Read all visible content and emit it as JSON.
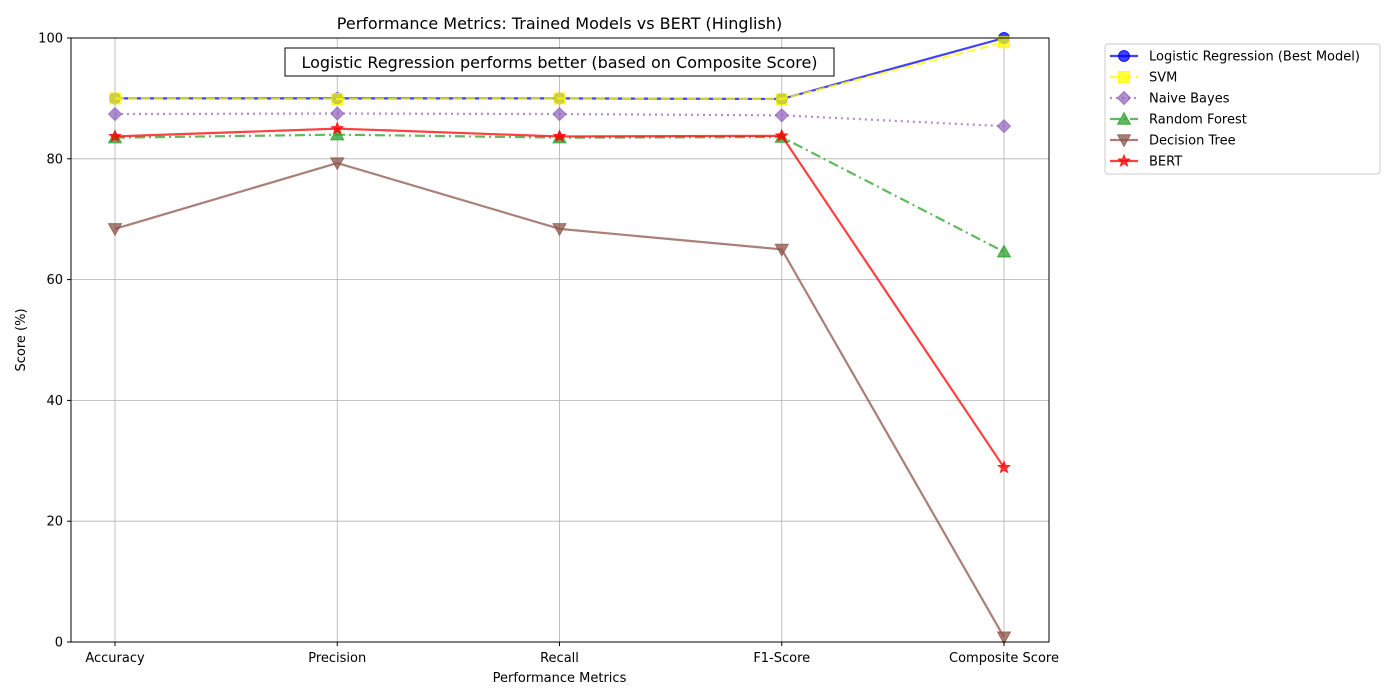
{
  "chart_data": {
    "type": "line",
    "title": "Performance Metrics: Trained Models vs BERT (Hinglish)",
    "xlabel": "Performance Metrics",
    "ylabel": "Score (%)",
    "categories": [
      "Accuracy",
      "Precision",
      "Recall",
      "F1-Score",
      "Composite Score"
    ],
    "ylim": [
      0,
      100
    ],
    "yticks": [
      0,
      20,
      40,
      60,
      80,
      100
    ],
    "grid": true,
    "annotation": "Logistic Regression performs better (based on Composite Score)",
    "legend_position": "outside-upper-right",
    "series": [
      {
        "name": "Logistic Regression (Best Model)",
        "values": [
          90.0,
          90.0,
          90.0,
          89.9,
          100.0
        ],
        "color": "#0000ff",
        "marker": "circle",
        "dash": "solid"
      },
      {
        "name": "SVM",
        "values": [
          90.0,
          89.9,
          90.0,
          89.9,
          99.3
        ],
        "color": "#ffff00",
        "marker": "square",
        "dash": "dashed"
      },
      {
        "name": "Naive Bayes",
        "values": [
          87.4,
          87.5,
          87.4,
          87.2,
          85.4
        ],
        "color": "#9467bd",
        "marker": "diamond",
        "dash": "dotted"
      },
      {
        "name": "Random Forest",
        "values": [
          83.5,
          84.0,
          83.5,
          83.6,
          64.6
        ],
        "color": "#2ca02c",
        "marker": "triangle-up",
        "dash": "dashdot"
      },
      {
        "name": "Decision Tree",
        "values": [
          68.4,
          79.3,
          68.4,
          65.0,
          0.8
        ],
        "color": "#8c564b",
        "marker": "triangle-down",
        "dash": "solid"
      },
      {
        "name": "BERT",
        "values": [
          83.7,
          85.0,
          83.7,
          83.8,
          28.9
        ],
        "color": "#ff0000",
        "marker": "star",
        "dash": "solid"
      }
    ]
  }
}
